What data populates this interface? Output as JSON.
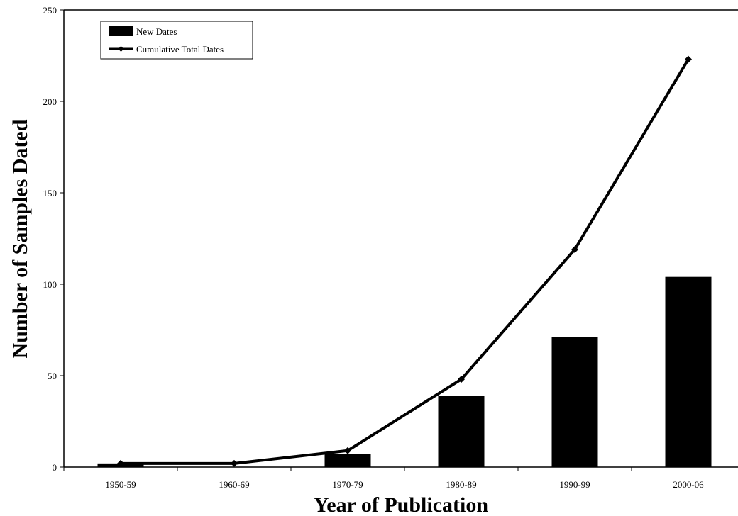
{
  "chart_data": {
    "type": "bar",
    "categories": [
      "1950-59",
      "1960-69",
      "1970-79",
      "1980-89",
      "1990-99",
      "2000-06"
    ],
    "series": [
      {
        "name": "New Dates",
        "kind": "bar",
        "values": [
          2,
          0,
          7,
          39,
          71,
          104
        ],
        "color": "#000000"
      },
      {
        "name": "Cumulative Total Dates",
        "kind": "line",
        "marker": "diamond",
        "values": [
          2,
          2,
          9,
          48,
          119,
          223
        ],
        "color": "#000000"
      }
    ],
    "xlabel": "Year of Publication",
    "ylabel": "Number of Samples Dated",
    "ylim": [
      0,
      250
    ],
    "yticks": [
      0,
      50,
      100,
      150,
      200,
      250
    ],
    "grid": false,
    "legend_position": "top-left"
  }
}
